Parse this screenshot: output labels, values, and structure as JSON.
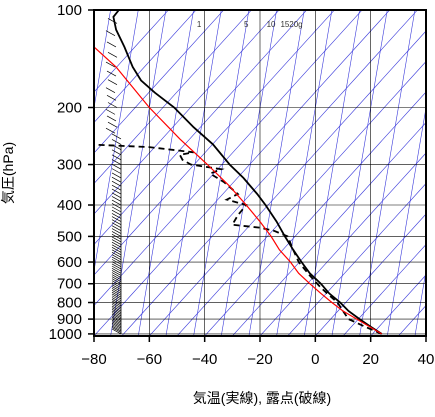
{
  "chart_data": {
    "type": "line",
    "xlabel": "気温(実線), 露点(破線)",
    "ylabel": "気圧(hPa)",
    "xlim": [
      -80,
      40
    ],
    "ylim": [
      1015,
      100
    ],
    "y_scale": "log",
    "xticks": [
      -80,
      -60,
      -40,
      -20,
      0,
      20,
      40
    ],
    "xtick_labels": [
      "−80",
      "−60",
      "−40",
      "−20",
      "0",
      "20",
      "40"
    ],
    "yticks": [
      100,
      200,
      300,
      400,
      500,
      600,
      700,
      800,
      900,
      1000
    ],
    "ytick_labels": [
      "100",
      "200",
      "300",
      "400",
      "500",
      "600",
      "700",
      "800",
      "900",
      "1000"
    ],
    "mixing_ratio_labels": [
      "1",
      "5",
      "10",
      "15",
      "20g"
    ],
    "mixing_ratio_values": [
      1,
      5,
      10,
      15,
      20
    ],
    "grid": true,
    "colors": {
      "temperature": "#000000",
      "dewpoint": "#000000",
      "parcel": "#ff0000",
      "guide_lines": "#3a3adb",
      "grid": "#000000"
    },
    "series": [
      {
        "style": "solid",
        "color": "#000000",
        "points": [
          [
            24,
            1000
          ],
          [
            20,
            950
          ],
          [
            16,
            900
          ],
          [
            12,
            850
          ],
          [
            9,
            800
          ],
          [
            5,
            750
          ],
          [
            2,
            700
          ],
          [
            -2,
            650
          ],
          [
            -5,
            600
          ],
          [
            -8,
            550
          ],
          [
            -11,
            500
          ],
          [
            -14,
            450
          ],
          [
            -18,
            400
          ],
          [
            -21,
            370
          ],
          [
            -26,
            330
          ],
          [
            -31,
            300
          ],
          [
            -37,
            260
          ],
          [
            -44,
            230
          ],
          [
            -51,
            200
          ],
          [
            -58,
            180
          ],
          [
            -63,
            165
          ],
          [
            -66,
            150
          ],
          [
            -69,
            130
          ],
          [
            -72,
            115
          ],
          [
            -73,
            105
          ],
          [
            -71,
            100
          ]
        ]
      },
      {
        "style": "dashed",
        "color": "#000000",
        "points": [
          [
            24,
            1000
          ],
          [
            18,
            950
          ],
          [
            12,
            900
          ],
          [
            10,
            850
          ],
          [
            8,
            800
          ],
          [
            5,
            760
          ],
          [
            2,
            720
          ],
          [
            -2,
            660
          ],
          [
            -6,
            600
          ],
          [
            -8,
            550
          ],
          [
            -10,
            500
          ],
          [
            -15,
            480
          ],
          [
            -20,
            470
          ],
          [
            -30,
            460
          ],
          [
            -28,
            430
          ],
          [
            -25,
            400
          ],
          [
            -32,
            385
          ],
          [
            -28,
            370
          ],
          [
            -33,
            340
          ],
          [
            -38,
            320
          ],
          [
            -34,
            310
          ],
          [
            -45,
            300
          ],
          [
            -48,
            290
          ],
          [
            -49,
            280
          ],
          [
            -44,
            275
          ],
          [
            -60,
            265
          ],
          [
            -82,
            260
          ]
        ]
      },
      {
        "style": "solid",
        "color": "#ff0000",
        "points": [
          [
            24,
            1000
          ],
          [
            15,
            900
          ],
          [
            10,
            850
          ],
          [
            6,
            800
          ],
          [
            2,
            750
          ],
          [
            -2,
            700
          ],
          [
            -6,
            650
          ],
          [
            -9,
            600
          ],
          [
            -13,
            550
          ],
          [
            -16,
            500
          ],
          [
            -20,
            450
          ],
          [
            -25,
            400
          ],
          [
            -31,
            350
          ],
          [
            -39,
            300
          ],
          [
            -49,
            250
          ],
          [
            -60,
            200
          ],
          [
            -72,
            150
          ],
          [
            -80,
            130
          ]
        ]
      }
    ]
  }
}
